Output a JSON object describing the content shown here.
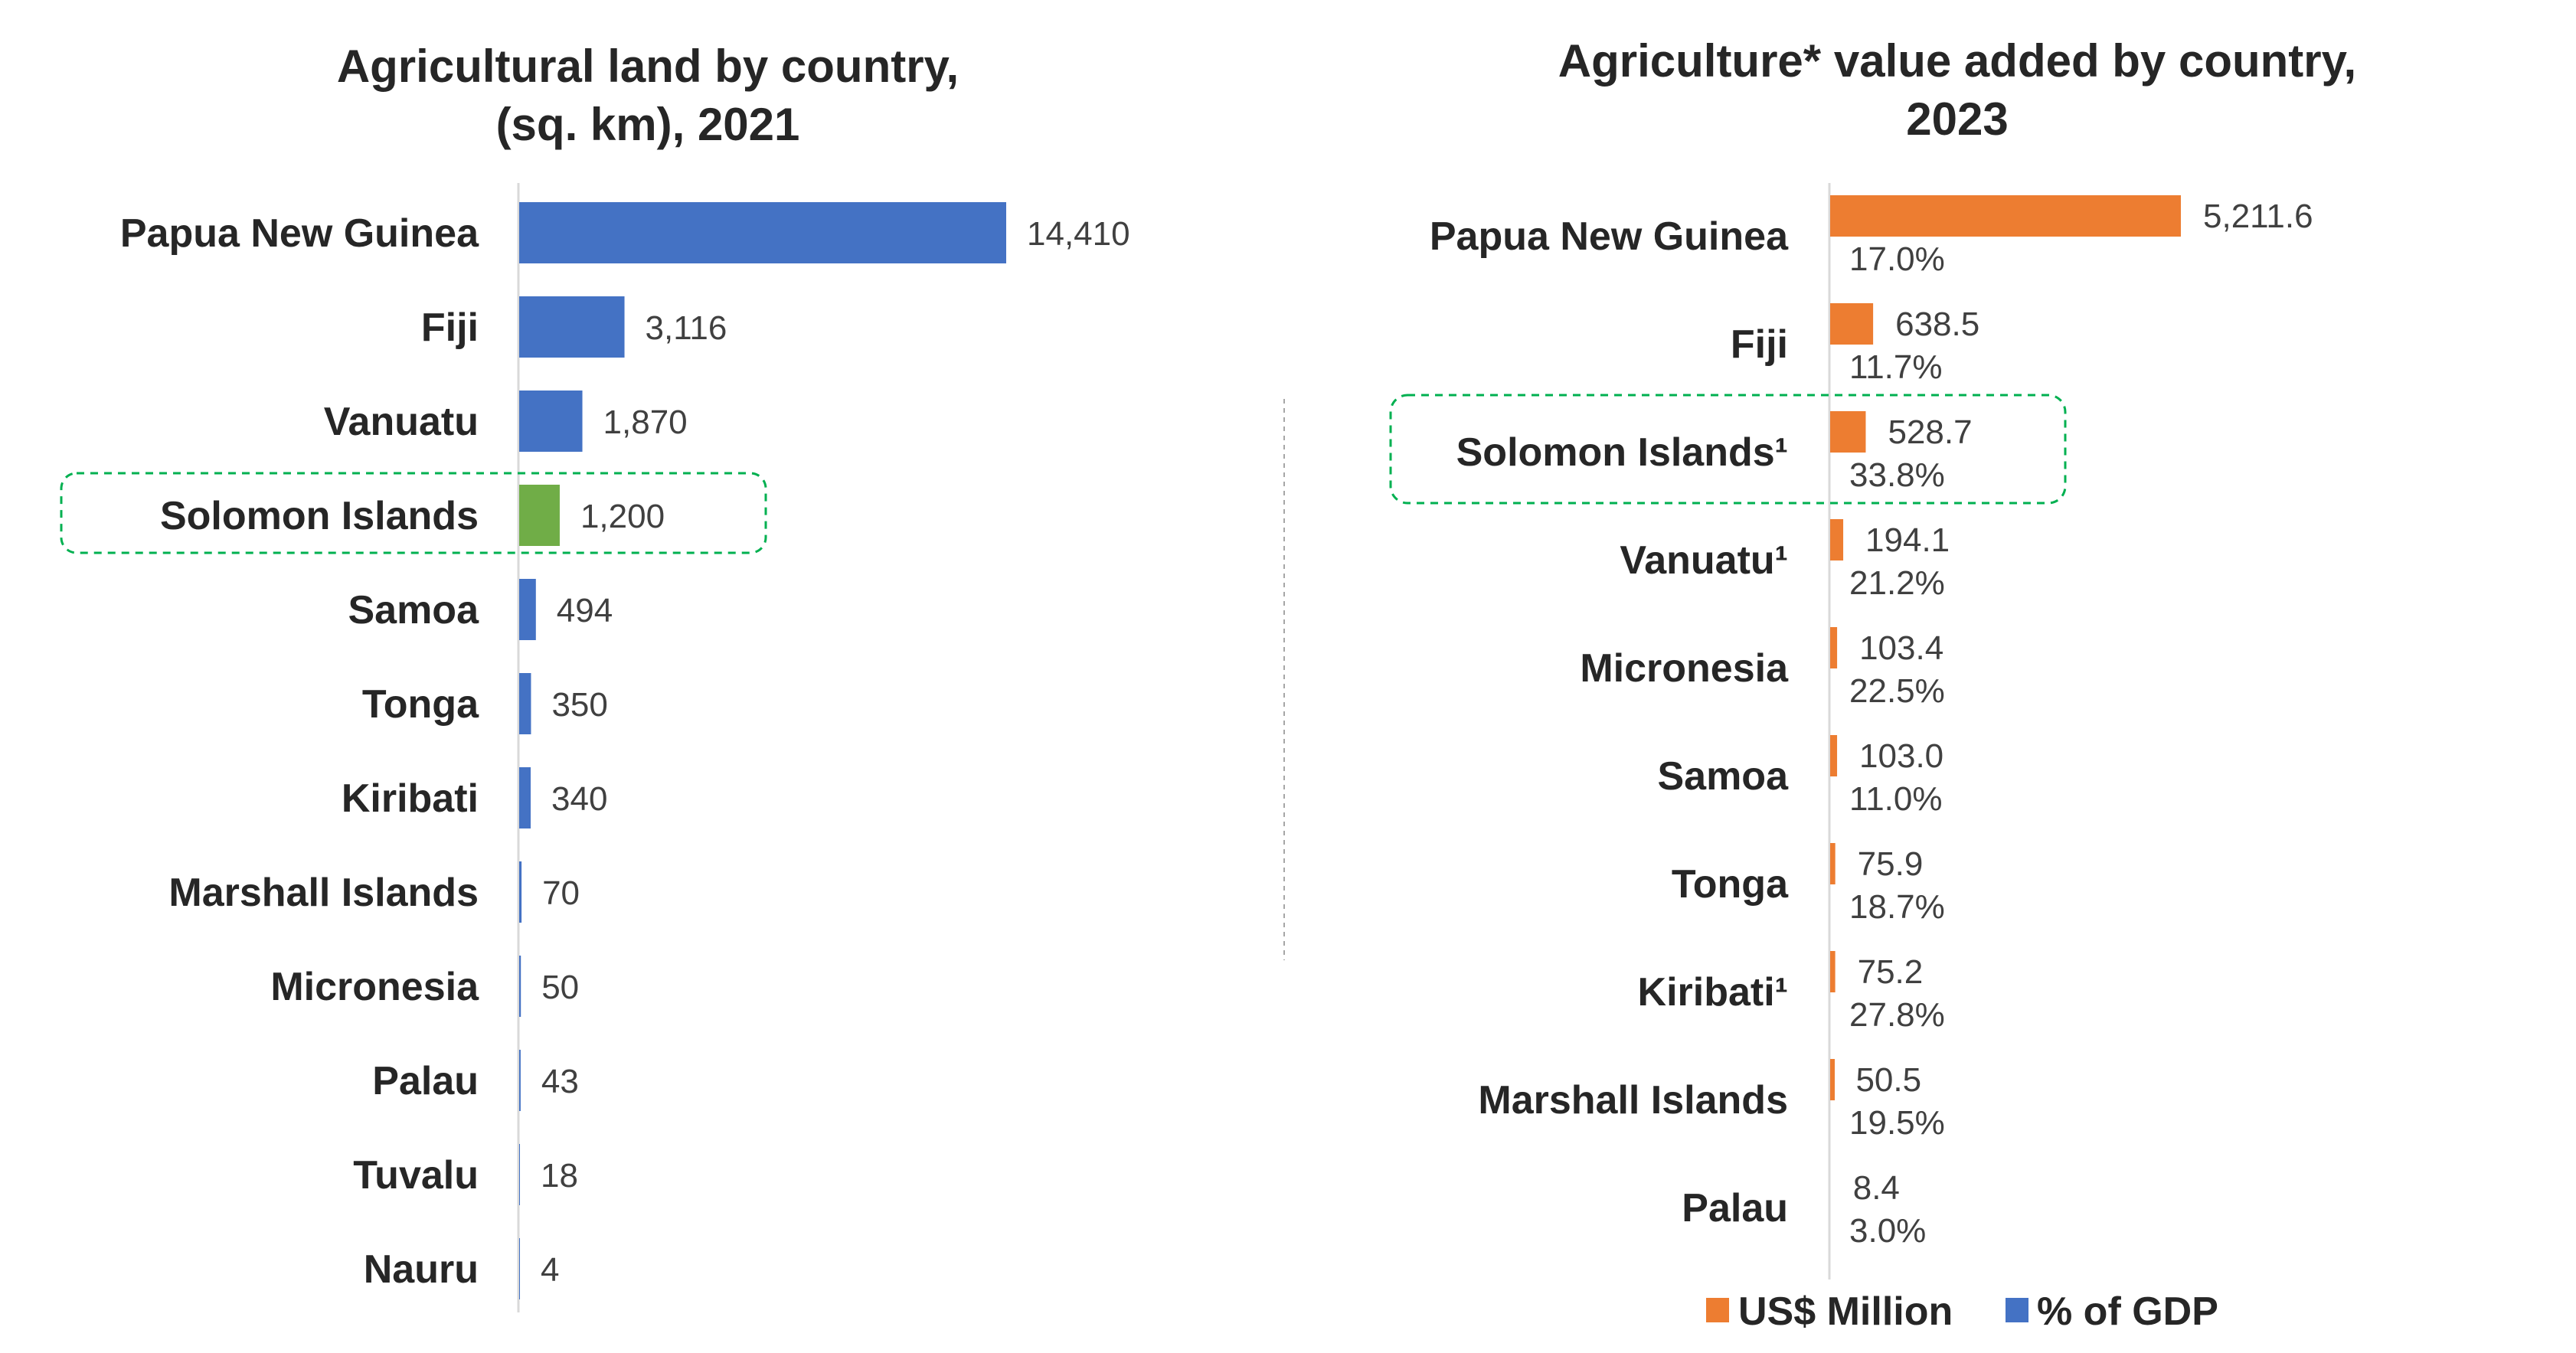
{
  "chart_data": [
    {
      "type": "bar",
      "orientation": "horizontal",
      "title_lines": [
        "Agricultural land by country,",
        "(sq. km), 2021"
      ],
      "categories": [
        "Papua New Guinea",
        "Fiji",
        "Vanuatu",
        "Solomon Islands",
        "Samoa",
        "Tonga",
        "Kiribati",
        "Marshall Islands",
        "Micronesia",
        "Palau",
        "Tuvalu",
        "Nauru"
      ],
      "values": [
        14410,
        3116,
        1870,
        1200,
        494,
        350,
        340,
        70,
        50,
        43,
        18,
        4
      ],
      "labels": [
        "14,410",
        "3,116",
        "1,870",
        "1,200",
        "494",
        "350",
        "340",
        "70",
        "50",
        "43",
        "18",
        "4"
      ],
      "highlight": "Solomon Islands",
      "colors": {
        "bar": "#4472C4",
        "highlight": "#70AD47",
        "box": "#00B050"
      },
      "xlim": [
        0,
        14410
      ]
    },
    {
      "type": "bar",
      "orientation": "horizontal",
      "title_lines": [
        "Agriculture* value added by country,",
        "2023"
      ],
      "categories": [
        "Papua New Guinea",
        "Fiji",
        "Solomon Islands¹",
        "Vanuatu¹",
        "Micronesia",
        "Samoa",
        "Tonga",
        "Kiribati¹",
        "Marshall Islands",
        "Palau"
      ],
      "series": [
        {
          "name": "US$ Million",
          "color": "#ED7D31",
          "values": [
            5211.6,
            638.5,
            528.7,
            194.1,
            103.4,
            103.0,
            75.9,
            75.2,
            50.5,
            8.4
          ],
          "labels": [
            "5,211.6",
            "638.5",
            "528.7",
            "194.1",
            "103.4",
            "103.0",
            "75.9",
            "75.2",
            "50.5",
            "8.4"
          ]
        },
        {
          "name": "% of GDP",
          "color": "#4472C4",
          "values": [
            17.0,
            11.7,
            33.8,
            21.2,
            22.5,
            11.0,
            18.7,
            27.8,
            19.5,
            3.0
          ],
          "labels": [
            "17.0%",
            "11.7%",
            "33.8%",
            "21.2%",
            "22.5%",
            "11.0%",
            "18.7%",
            "27.8%",
            "19.5%",
            "3.0%"
          ]
        }
      ],
      "highlight": "Solomon Islands¹",
      "legend": "bottom",
      "xlim": [
        0,
        5211.6
      ]
    }
  ]
}
